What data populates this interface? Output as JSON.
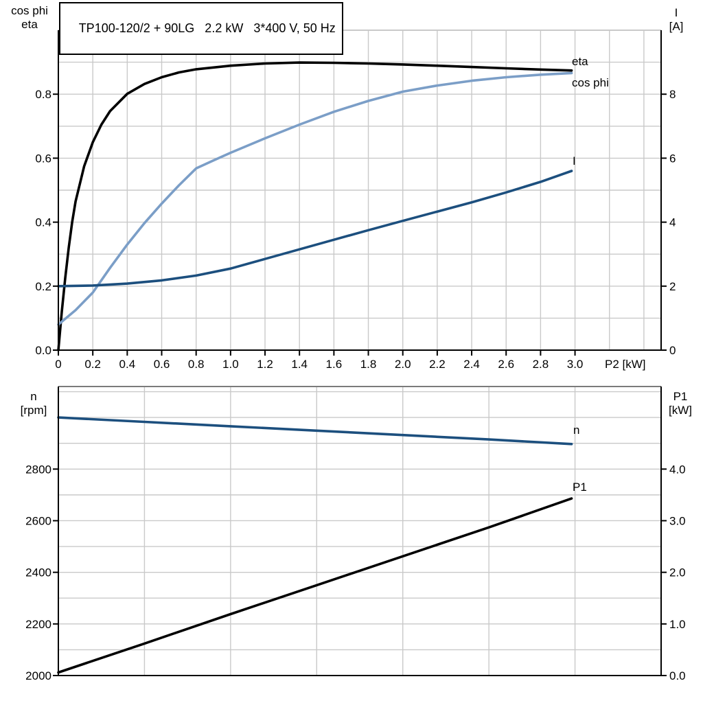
{
  "figure": {
    "background": "#ffffff",
    "title_box": {
      "text": "TP100-120/2 + 90LG   2.2 kW   3*400 V, 50 Hz"
    }
  },
  "colors": {
    "grid": "#c9c9c9",
    "axis": "#000000",
    "chart2_top_border": "#7b7b7b",
    "eta": "#000000",
    "cos_phi": "#7b9ec7",
    "current": "#1c4f7e",
    "speed": "#1c4f7e",
    "p1": "#000000"
  },
  "chart_data": [
    {
      "type": "line",
      "title": "TP100-120/2 + 90LG   2.2 kW   3*400 V, 50 Hz",
      "grid": true,
      "legend_position": "curve-end-labels",
      "x_axis": {
        "label": "P2 [kW]",
        "min": 0,
        "max": 3.5,
        "grid_step": 0.2,
        "tick_values": [
          0,
          0.2,
          0.4,
          0.6,
          0.8,
          1.0,
          1.2,
          1.4,
          1.6,
          1.8,
          2.0,
          2.2,
          2.4,
          2.6,
          2.8,
          3.0
        ],
        "tick_labels": [
          "0",
          "0.2",
          "0.4",
          "0.6",
          "0.8",
          "1.0",
          "1.2",
          "1.4",
          "1.6",
          "1.8",
          "2.0",
          "2.2",
          "2.4",
          "2.6",
          "2.8",
          "3.0"
        ]
      },
      "left_axis": {
        "title_lines": [
          "cos phi",
          "eta"
        ],
        "min": 0,
        "max": 1.0,
        "grid_step": 0.1,
        "tick_values": [
          0,
          0.2,
          0.4,
          0.6,
          0.8
        ],
        "tick_labels": [
          "0.0",
          "0.2",
          "0.4",
          "0.6",
          "0.8"
        ]
      },
      "right_axis": {
        "title_lines": [
          "I",
          "[A]"
        ],
        "min": 0,
        "max": 10,
        "tick_values": [
          0,
          2,
          4,
          6,
          8
        ],
        "tick_labels": [
          "0",
          "2",
          "4",
          "6",
          "8"
        ]
      },
      "series": [
        {
          "name": "eta",
          "axis": "left",
          "color": "#000000",
          "x": [
            0,
            0.01,
            0.02,
            0.04,
            0.06,
            0.08,
            0.1,
            0.15,
            0.2,
            0.25,
            0.3,
            0.4,
            0.5,
            0.6,
            0.7,
            0.8,
            1.0,
            1.2,
            1.4,
            1.6,
            1.8,
            2.0,
            2.2,
            2.4,
            2.6,
            2.8,
            2.98
          ],
          "y": [
            0,
            0.06,
            0.12,
            0.225,
            0.32,
            0.4,
            0.465,
            0.575,
            0.65,
            0.705,
            0.747,
            0.801,
            0.832,
            0.853,
            0.868,
            0.878,
            0.889,
            0.896,
            0.899,
            0.898,
            0.896,
            0.893,
            0.889,
            0.885,
            0.881,
            0.877,
            0.874
          ]
        },
        {
          "name": "cos phi",
          "axis": "left",
          "color": "#7b9ec7",
          "x": [
            0,
            0.1,
            0.2,
            0.3,
            0.4,
            0.5,
            0.6,
            0.7,
            0.8,
            0.9,
            1.0,
            1.2,
            1.4,
            1.6,
            1.8,
            2.0,
            2.2,
            2.4,
            2.6,
            2.8,
            2.98
          ],
          "y": [
            0.08,
            0.125,
            0.18,
            0.257,
            0.33,
            0.397,
            0.458,
            0.515,
            0.568,
            0.593,
            0.617,
            0.662,
            0.705,
            0.745,
            0.779,
            0.808,
            0.827,
            0.842,
            0.853,
            0.861,
            0.866
          ]
        },
        {
          "name": "I",
          "axis": "right",
          "color": "#1c4f7e",
          "x": [
            0,
            0.2,
            0.4,
            0.6,
            0.8,
            1.0,
            1.2,
            1.4,
            1.6,
            1.8,
            2.0,
            2.2,
            2.4,
            2.6,
            2.8,
            2.98
          ],
          "y": [
            2.0,
            2.02,
            2.08,
            2.18,
            2.33,
            2.55,
            2.85,
            3.15,
            3.45,
            3.75,
            4.04,
            4.33,
            4.62,
            4.93,
            5.26,
            5.6
          ]
        }
      ]
    },
    {
      "type": "line",
      "title": "",
      "grid": true,
      "legend_position": "curve-end-labels",
      "x_axis": {
        "label": "",
        "min": 0,
        "max": 3.5,
        "grid_step": 0.5,
        "tick_values": [],
        "tick_labels": []
      },
      "left_axis": {
        "title_lines": [
          "n",
          "[rpm]"
        ],
        "min": 2000,
        "max": 3120,
        "tick_values": [
          2000,
          2200,
          2400,
          2600,
          2800
        ],
        "tick_labels": [
          "2000",
          "2200",
          "2400",
          "2600",
          "2800"
        ]
      },
      "right_axis": {
        "title_lines": [
          "P1",
          "[kW]"
        ],
        "min": 0,
        "max": 5.6,
        "grid_step": 0.5,
        "tick_values": [
          0,
          1,
          2,
          3,
          4
        ],
        "tick_labels": [
          "0.0",
          "1.0",
          "2.0",
          "3.0",
          "4.0"
        ]
      },
      "series": [
        {
          "name": "n",
          "axis": "left",
          "color": "#1c4f7e",
          "x": [
            0,
            0.5,
            1.0,
            1.5,
            2.0,
            2.5,
            2.98
          ],
          "y": [
            3000,
            2983,
            2966,
            2949,
            2932,
            2915,
            2897
          ]
        },
        {
          "name": "P1",
          "axis": "right",
          "color": "#000000",
          "x": [
            0,
            0.5,
            1.0,
            1.5,
            2.0,
            2.5,
            2.98
          ],
          "y": [
            0.06,
            0.62,
            1.19,
            1.75,
            2.31,
            2.87,
            3.43
          ]
        }
      ]
    }
  ]
}
